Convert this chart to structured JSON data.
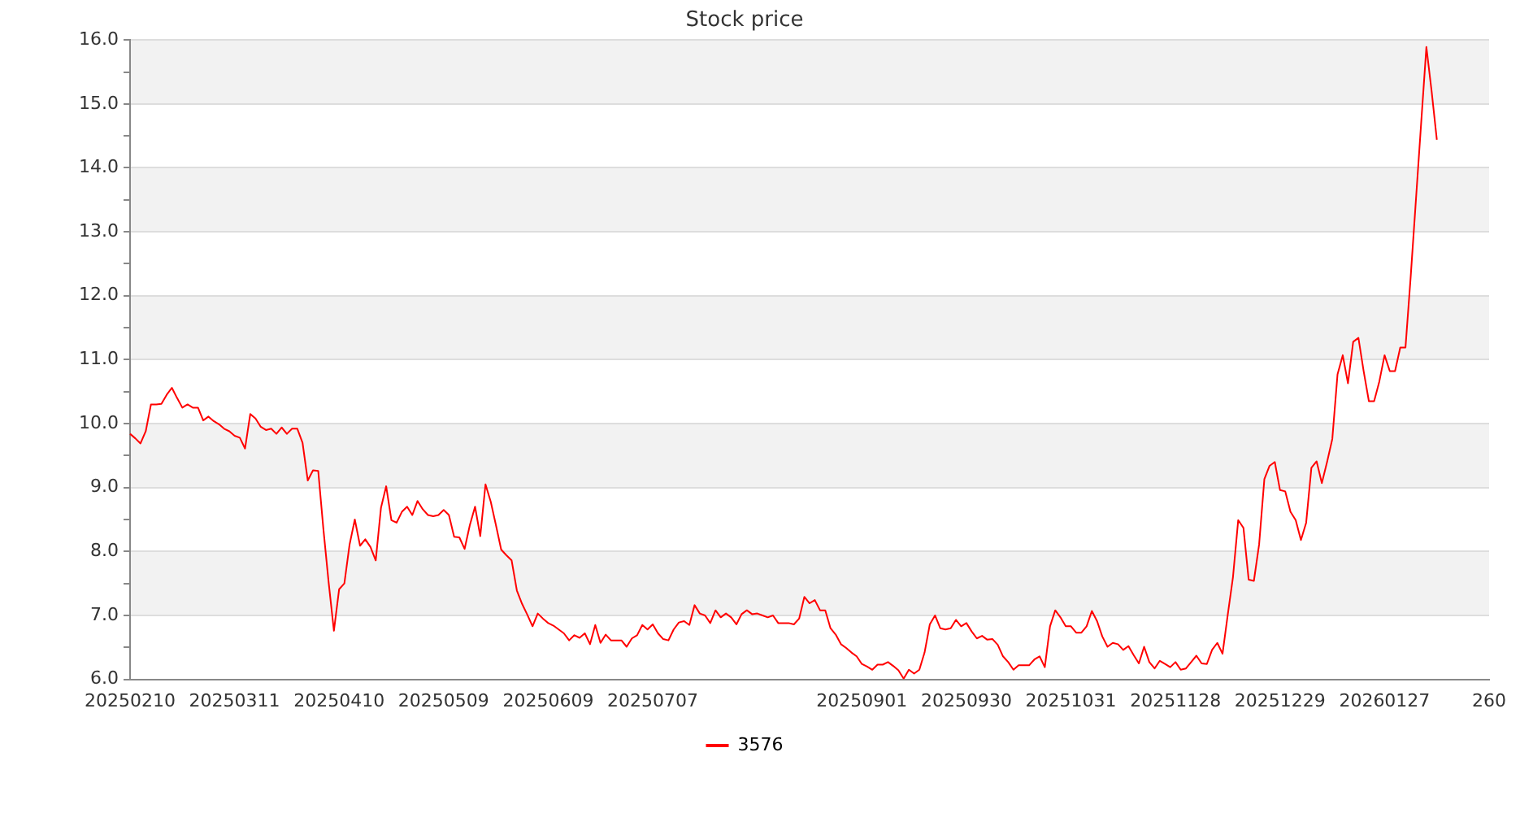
{
  "chart_data": {
    "type": "line",
    "title": "Stock price",
    "categories": [
      "20250210",
      null,
      null,
      null,
      null,
      null,
      null,
      null,
      null,
      null,
      null,
      null,
      null,
      null,
      null,
      null,
      null,
      null,
      null,
      null,
      "20250311",
      null,
      null,
      null,
      null,
      null,
      null,
      null,
      null,
      null,
      null,
      null,
      null,
      null,
      null,
      null,
      null,
      null,
      null,
      null,
      "20250410",
      null,
      null,
      null,
      null,
      null,
      null,
      null,
      null,
      null,
      null,
      null,
      null,
      null,
      null,
      null,
      null,
      null,
      null,
      null,
      "20250509",
      null,
      null,
      null,
      null,
      null,
      null,
      null,
      null,
      null,
      null,
      null,
      null,
      null,
      null,
      null,
      null,
      null,
      null,
      null,
      "20250609",
      null,
      null,
      null,
      null,
      null,
      null,
      null,
      null,
      null,
      null,
      null,
      null,
      null,
      null,
      null,
      null,
      null,
      null,
      null,
      "20250707",
      null,
      null,
      null,
      null,
      null,
      null,
      null,
      null,
      null,
      null,
      null,
      null,
      null,
      null,
      null,
      null,
      null,
      null,
      null,
      null,
      null,
      null,
      null,
      null,
      null,
      null,
      null,
      null,
      null,
      null,
      null,
      null,
      null,
      null,
      null,
      null,
      null,
      null,
      null,
      "20250901",
      null,
      null,
      null,
      null,
      null,
      null,
      null,
      null,
      null,
      null,
      null,
      null,
      null,
      null,
      null,
      null,
      null,
      null,
      null,
      "20250930",
      null,
      null,
      null,
      null,
      null,
      null,
      null,
      null,
      null,
      null,
      null,
      null,
      null,
      null,
      null,
      null,
      null,
      null,
      null,
      "20251031",
      null,
      null,
      null,
      null,
      null,
      null,
      null,
      null,
      null,
      null,
      null,
      null,
      null,
      null,
      null,
      null,
      null,
      null,
      null,
      "20251128",
      null,
      null,
      null,
      null,
      null,
      null,
      null,
      null,
      null,
      null,
      null,
      null,
      null,
      null,
      null,
      null,
      null,
      null,
      null,
      "20251229",
      null,
      null,
      null,
      null,
      null,
      null,
      null,
      null,
      null,
      null,
      null,
      null,
      null,
      null,
      null,
      null,
      null,
      null,
      null,
      "20260127",
      null,
      null,
      null,
      null,
      null,
      null,
      null,
      null,
      null,
      null,
      null,
      null,
      null,
      null,
      null,
      null,
      null,
      null,
      null,
      "260"
    ],
    "series": [
      {
        "name": "3576",
        "color": "#ff0000",
        "values": [
          9.84,
          9.77,
          9.69,
          9.88,
          10.3,
          10.3,
          10.31,
          10.45,
          10.56,
          10.4,
          10.25,
          10.3,
          10.25,
          10.25,
          10.05,
          10.11,
          10.04,
          9.99,
          9.92,
          9.88,
          9.81,
          9.78,
          9.61,
          10.15,
          10.08,
          9.95,
          9.9,
          9.92,
          9.84,
          9.94,
          9.84,
          9.92,
          9.92,
          9.7,
          9.11,
          9.27,
          9.26,
          8.34,
          7.51,
          6.76,
          7.41,
          7.5,
          8.11,
          8.5,
          8.09,
          8.19,
          8.07,
          7.86,
          8.68,
          9.02,
          8.49,
          8.45,
          8.62,
          8.7,
          8.57,
          8.79,
          8.66,
          8.57,
          8.55,
          8.57,
          8.65,
          8.57,
          8.23,
          8.22,
          8.04,
          8.41,
          8.7,
          8.24,
          9.05,
          8.78,
          8.41,
          8.03,
          7.94,
          7.86,
          7.39,
          7.18,
          7.01,
          6.83,
          7.03,
          6.95,
          6.88,
          6.84,
          6.78,
          6.72,
          6.61,
          6.69,
          6.65,
          6.72,
          6.55,
          6.85,
          6.57,
          6.7,
          6.61,
          6.61,
          6.61,
          6.51,
          6.64,
          6.69,
          6.85,
          6.78,
          6.86,
          6.72,
          6.63,
          6.61,
          6.78,
          6.89,
          6.91,
          6.85,
          7.16,
          7.03,
          7.0,
          6.88,
          7.08,
          6.97,
          7.03,
          6.97,
          6.86,
          7.02,
          7.08,
          7.02,
          7.03,
          7.0,
          6.97,
          7.0,
          6.88,
          6.88,
          6.88,
          6.86,
          6.95,
          7.29,
          7.19,
          7.24,
          7.08,
          7.08,
          6.8,
          6.7,
          6.55,
          6.49,
          6.42,
          6.36,
          6.24,
          6.2,
          6.15,
          6.23,
          6.23,
          6.27,
          6.21,
          6.14,
          6.01,
          6.15,
          6.09,
          6.15,
          6.42,
          6.86,
          7.0,
          6.8,
          6.78,
          6.8,
          6.93,
          6.83,
          6.88,
          6.75,
          6.64,
          6.68,
          6.62,
          6.63,
          6.54,
          6.36,
          6.27,
          6.15,
          6.22,
          6.22,
          6.22,
          6.31,
          6.36,
          6.19,
          6.83,
          7.08,
          6.97,
          6.83,
          6.83,
          6.73,
          6.73,
          6.83,
          7.07,
          6.91,
          6.67,
          6.51,
          6.57,
          6.55,
          6.46,
          6.52,
          6.38,
          6.25,
          6.51,
          6.27,
          6.17,
          6.29,
          6.24,
          6.19,
          6.27,
          6.15,
          6.17,
          6.27,
          6.37,
          6.25,
          6.24,
          6.46,
          6.57,
          6.4,
          7.01,
          7.6,
          8.49,
          8.37,
          7.56,
          7.54,
          8.11,
          9.13,
          9.34,
          9.4,
          8.96,
          8.94,
          8.62,
          8.49,
          8.18,
          8.45,
          9.31,
          9.41,
          9.07,
          9.4,
          9.76,
          10.77,
          11.07,
          10.63,
          11.28,
          11.34,
          10.82,
          10.35,
          10.35,
          10.66,
          11.07,
          10.82,
          10.82,
          11.19,
          11.19,
          12.3,
          13.5,
          14.7,
          15.89,
          15.2,
          14.44,
          null,
          null,
          null,
          null,
          null,
          null,
          null,
          null,
          null,
          null
        ]
      }
    ],
    "ylim": [
      6,
      16
    ],
    "yticks": [
      {
        "value": 6,
        "label": "6.0"
      },
      {
        "value": 6.5,
        "label": null
      },
      {
        "value": 7,
        "label": "7.0"
      },
      {
        "value": 7.5,
        "label": null
      },
      {
        "value": 8,
        "label": "8.0"
      },
      {
        "value": 8.5,
        "label": null
      },
      {
        "value": 9,
        "label": "9.0"
      },
      {
        "value": 9.5,
        "label": null
      },
      {
        "value": 10,
        "label": "10.0"
      },
      {
        "value": 10.5,
        "label": null
      },
      {
        "value": 11,
        "label": "11.0"
      },
      {
        "value": 11.5,
        "label": null
      },
      {
        "value": 12,
        "label": "12.0"
      },
      {
        "value": 12.5,
        "label": null
      },
      {
        "value": 13,
        "label": "13.0"
      },
      {
        "value": 13.5,
        "label": null
      },
      {
        "value": 14,
        "label": "14.0"
      },
      {
        "value": 14.5,
        "label": null
      },
      {
        "value": 15,
        "label": "15.0"
      },
      {
        "value": 15.5,
        "label": null
      },
      {
        "value": 16,
        "label": "16.0"
      }
    ],
    "grid": "y",
    "legend": "bottom"
  }
}
